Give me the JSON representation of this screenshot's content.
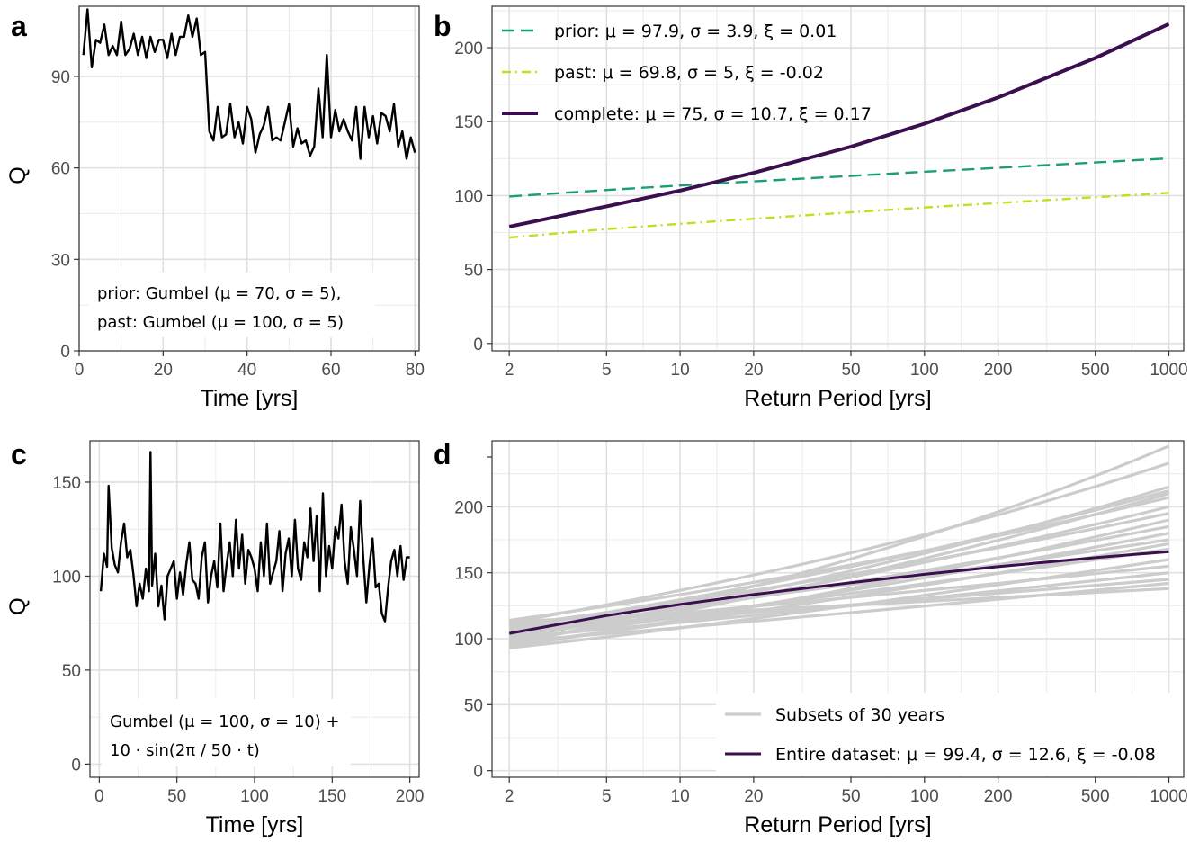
{
  "chart_data": [
    {
      "panel": "a",
      "type": "line",
      "xlabel": "Time [yrs]",
      "ylabel": "Q",
      "xlim": [
        0,
        81
      ],
      "ylim": [
        0,
        113
      ],
      "xticks": [
        0,
        20,
        40,
        60,
        80
      ],
      "yticks": [
        0,
        30,
        60,
        90
      ],
      "annotation": [
        "prior: Gumbel (μ = 70, σ = 5),",
        "past: Gumbel (μ = 100, σ = 5)"
      ],
      "series": [
        {
          "color": "#000000",
          "x": [
            1,
            2,
            3,
            4,
            5,
            6,
            7,
            8,
            9,
            10,
            11,
            12,
            13,
            14,
            15,
            16,
            17,
            18,
            19,
            20,
            21,
            22,
            23,
            24,
            25,
            26,
            27,
            28,
            29,
            30,
            31,
            32,
            33,
            34,
            35,
            36,
            37,
            38,
            39,
            40,
            41,
            42,
            43,
            44,
            45,
            46,
            47,
            48,
            49,
            50,
            51,
            52,
            53,
            54,
            55,
            56,
            57,
            58,
            59,
            60,
            61,
            62,
            63,
            64,
            65,
            66,
            67,
            68,
            69,
            70,
            71,
            72,
            73,
            74,
            75,
            76,
            77,
            78,
            79,
            80
          ],
          "y": [
            97,
            112,
            93,
            102,
            101,
            107,
            97,
            100,
            97,
            108,
            97,
            99,
            104,
            97,
            103,
            96,
            103,
            98,
            102,
            102,
            96,
            104,
            97,
            103,
            103,
            110,
            103,
            109,
            97,
            98,
            72,
            69,
            80,
            70,
            71,
            81,
            70,
            75,
            68,
            80,
            76,
            65,
            71,
            74,
            80,
            69,
            70,
            69,
            75,
            81,
            67,
            73,
            68,
            69,
            64,
            67,
            86,
            70,
            97,
            70,
            79,
            72,
            76,
            72,
            69,
            80,
            63,
            80,
            70,
            77,
            68,
            78,
            77,
            72,
            81,
            67,
            72,
            63,
            70,
            65
          ]
        }
      ]
    },
    {
      "panel": "b",
      "type": "line",
      "xlabel": "Return Period [yrs]",
      "xscale": "log",
      "xlim": [
        1.7,
        1150
      ],
      "ylim": [
        -5,
        228
      ],
      "xticks": [
        2,
        5,
        10,
        20,
        50,
        100,
        200,
        500,
        1000
      ],
      "yticks": [
        0,
        50,
        100,
        150,
        200
      ],
      "legend_position": "top-left",
      "series": [
        {
          "name": "prior: μ = 97.9, σ = 3.9, ξ = 0.01",
          "color": "#1b9e77",
          "style": "dashed",
          "x": [
            2,
            5,
            10,
            20,
            50,
            100,
            200,
            500,
            1000
          ],
          "y": [
            99.4,
            103.8,
            106.8,
            109.6,
            113.3,
            116.1,
            118.8,
            122.4,
            125.2
          ]
        },
        {
          "name": "past: μ = 69.8, σ = 5, ξ = -0.02",
          "color": "#c8dc1e",
          "style": "dotdash",
          "x": [
            2,
            5,
            10,
            20,
            50,
            100,
            200,
            500,
            1000
          ],
          "y": [
            71.6,
            77.3,
            80.9,
            84.3,
            88.7,
            91.9,
            95.0,
            98.9,
            101.8
          ]
        },
        {
          "name": "complete: μ = 75, σ = 10.7, ξ = 0.17",
          "color": "#3b0f4f",
          "style": "solid",
          "x": [
            2,
            5,
            10,
            20,
            50,
            100,
            200,
            500,
            1000
          ],
          "y": [
            79.0,
            92.7,
            103.4,
            115.4,
            133.1,
            148.6,
            166.3,
            193.0,
            216.0
          ]
        }
      ]
    },
    {
      "panel": "c",
      "type": "line",
      "xlabel": "Time [yrs]",
      "ylabel": "Q",
      "xlim": [
        -6,
        206
      ],
      "ylim": [
        -7,
        172
      ],
      "xticks": [
        0,
        50,
        100,
        150,
        200
      ],
      "yticks": [
        0,
        50,
        100,
        150
      ],
      "annotation": [
        "Gumbel (μ = 100, σ = 10) +",
        "10  · sin(2π /  50  · t)"
      ],
      "series": [
        {
          "color": "#000000",
          "x": [
            1,
            3,
            5,
            6,
            8,
            10,
            12,
            14,
            16,
            18,
            20,
            22,
            24,
            26,
            28,
            30,
            32,
            33,
            34,
            36,
            38,
            40,
            42,
            44,
            46,
            48,
            50,
            52,
            54,
            56,
            58,
            60,
            62,
            64,
            66,
            68,
            70,
            72,
            74,
            76,
            78,
            80,
            82,
            84,
            86,
            88,
            90,
            92,
            94,
            96,
            98,
            100,
            102,
            104,
            106,
            108,
            110,
            112,
            114,
            116,
            118,
            120,
            122,
            124,
            126,
            128,
            130,
            132,
            134,
            136,
            138,
            140,
            142,
            144,
            146,
            148,
            150,
            152,
            154,
            156,
            158,
            160,
            162,
            164,
            166,
            168,
            170,
            172,
            174,
            176,
            178,
            180,
            182,
            184,
            186,
            188,
            190,
            192,
            194,
            196,
            198,
            200
          ],
          "y": [
            92,
            112,
            105,
            148,
            115,
            106,
            102,
            118,
            128,
            110,
            114,
            101,
            84,
            96,
            88,
            104,
            92,
            166,
            95,
            112,
            84,
            95,
            77,
            100,
            104,
            108,
            88,
            102,
            90,
            106,
            118,
            98,
            96,
            88,
            110,
            118,
            86,
            100,
            108,
            94,
            128,
            92,
            106,
            118,
            100,
            130,
            104,
            122,
            96,
            114,
            110,
            104,
            92,
            118,
            100,
            128,
            96,
            102,
            108,
            124,
            92,
            112,
            120,
            100,
            130,
            104,
            98,
            118,
            110,
            136,
            108,
            132,
            92,
            144,
            100,
            116,
            104,
            126,
            120,
            138,
            108,
            96,
            126,
            114,
            100,
            140,
            110,
            86,
            106,
            120,
            94,
            96,
            80,
            76,
            94,
            108,
            114,
            100,
            116,
            98,
            110,
            110
          ]
        }
      ]
    },
    {
      "panel": "d",
      "type": "line",
      "xlabel": "Return Period [yrs]",
      "xscale": "log",
      "xlim": [
        1.7,
        1150
      ],
      "ylim": [
        -5,
        250
      ],
      "xticks": [
        2,
        5,
        10,
        20,
        50,
        100,
        200,
        500,
        1000
      ],
      "yticks": [
        0,
        50,
        100,
        150,
        200
      ],
      "legend_position": "bottom-right",
      "subsets_endpoints_at_T1000": [
        246,
        233,
        215,
        212,
        210,
        207,
        200,
        195,
        190,
        185,
        180,
        175,
        172,
        168,
        160,
        155,
        150,
        145,
        142,
        138
      ],
      "subsets_start_at_T2": [
        95,
        112,
        100,
        108,
        97,
        114,
        102,
        110,
        94,
        106,
        99,
        111,
        96,
        104,
        93,
        109,
        101,
        107,
        98,
        113
      ],
      "series": [
        {
          "name": "Subsets of 30 years",
          "color": "#cccccc",
          "style": "solid"
        },
        {
          "name": "Entire dataset: μ = 99.4, σ = 12.6, ξ = -0.08",
          "color": "#3b0f4f",
          "style": "solid",
          "x": [
            2,
            5,
            10,
            20,
            50,
            100,
            200,
            500,
            1000
          ],
          "y": [
            104.0,
            117.5,
            126.0,
            133.5,
            142.5,
            148.8,
            154.6,
            161.4,
            166.0
          ]
        }
      ]
    }
  ],
  "panel_tags": [
    "a",
    "b",
    "c",
    "d"
  ]
}
